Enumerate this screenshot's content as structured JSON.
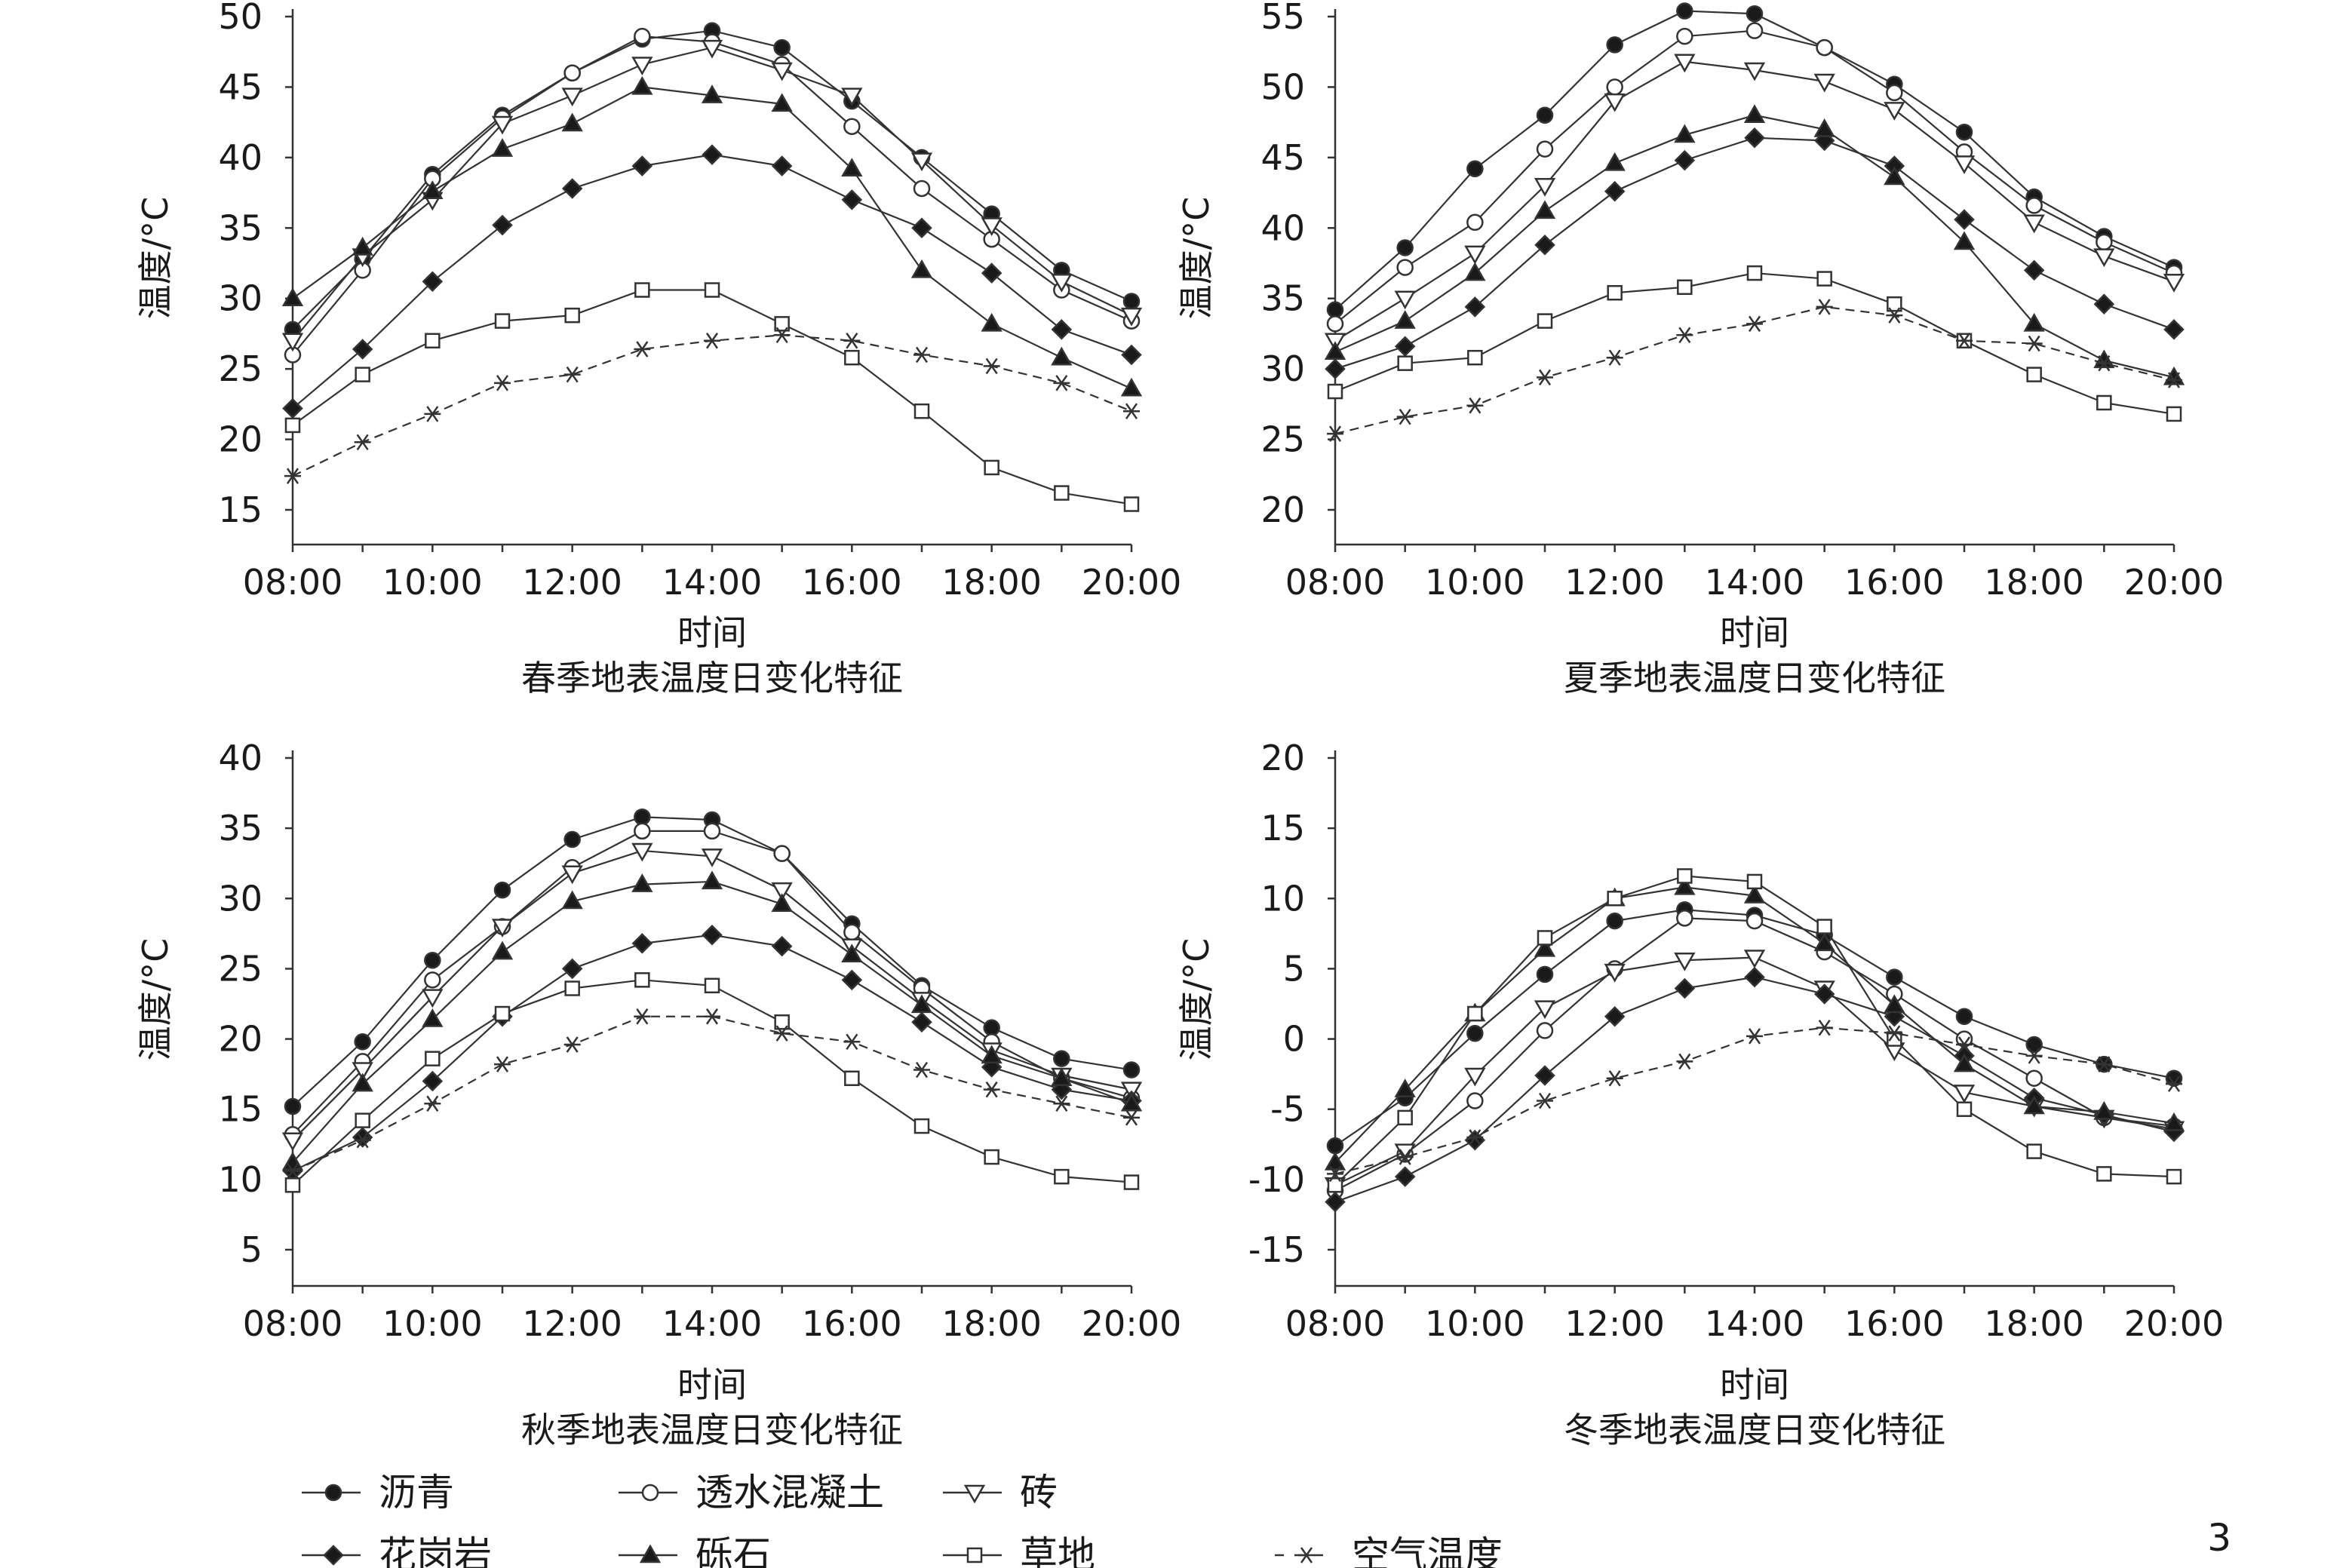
{
  "page_number": "3",
  "legend": [
    {
      "name": "沥青",
      "marker": "circle-filled",
      "dashed": false
    },
    {
      "name": "透水混凝土",
      "marker": "circle-open",
      "dashed": false
    },
    {
      "name": "砖",
      "marker": "triangle-down-open",
      "dashed": false
    },
    {
      "name": "花岗岩",
      "marker": "diamond-filled",
      "dashed": false
    },
    {
      "name": "砾石",
      "marker": "triangle-up-filled",
      "dashed": false
    },
    {
      "name": "草地",
      "marker": "square-open",
      "dashed": false
    },
    {
      "name": "空气温度",
      "marker": "asterisk",
      "dashed": true
    }
  ],
  "chart_data": [
    {
      "type": "line",
      "title": "春季地表温度日变化特征",
      "xlabel": "时间",
      "ylabel": "温度/°C",
      "categories": [
        "08:00",
        "09:00",
        "10:00",
        "11:00",
        "12:00",
        "13:00",
        "14:00",
        "15:00",
        "16:00",
        "17:00",
        "18:00",
        "19:00",
        "20:00"
      ],
      "xticks": [
        "08:00",
        "10:00",
        "12:00",
        "14:00",
        "16:00",
        "18:00",
        "20:00"
      ],
      "ylim": [
        12,
        50
      ],
      "yticks": [
        15,
        20,
        25,
        30,
        35,
        40,
        45,
        50
      ],
      "series": [
        {
          "name": "沥青",
          "values": [
            27.8,
            32.8,
            38.8,
            43.0,
            46.0,
            48.4,
            49.0,
            47.8,
            44.0,
            40.0,
            36.0,
            32.0,
            29.8
          ]
        },
        {
          "name": "透水混凝土",
          "values": [
            26.0,
            32.0,
            38.5,
            42.8,
            46.0,
            48.6,
            48.2,
            46.6,
            42.2,
            37.8,
            34.2,
            30.6,
            28.4
          ]
        },
        {
          "name": "砖",
          "values": [
            27.0,
            33.0,
            37.0,
            42.4,
            44.4,
            46.6,
            47.8,
            46.2,
            44.4,
            39.8,
            35.2,
            31.2,
            28.8
          ]
        },
        {
          "name": "花岗岩",
          "values": [
            22.2,
            26.4,
            31.2,
            35.2,
            37.8,
            39.4,
            40.2,
            39.4,
            37.0,
            35.0,
            31.8,
            27.8,
            26.0
          ]
        },
        {
          "name": "砾石",
          "values": [
            30.0,
            33.6,
            37.6,
            40.6,
            42.4,
            45.0,
            44.4,
            43.8,
            39.2,
            32.0,
            28.2,
            25.8,
            23.6
          ]
        },
        {
          "name": "草地",
          "values": [
            21.0,
            24.6,
            27.0,
            28.4,
            28.8,
            30.6,
            30.6,
            28.2,
            25.8,
            22.0,
            18.0,
            16.2,
            15.4
          ]
        },
        {
          "name": "空气温度",
          "values": [
            17.4,
            19.8,
            21.8,
            24.0,
            24.6,
            26.4,
            27.0,
            27.4,
            27.0,
            26.0,
            25.2,
            24.0,
            22.0
          ]
        }
      ]
    },
    {
      "type": "line",
      "title": "夏季地表温度日变化特征",
      "xlabel": "时间",
      "ylabel": "温度/°C",
      "categories": [
        "08:00",
        "09:00",
        "10:00",
        "11:00",
        "12:00",
        "13:00",
        "14:00",
        "15:00",
        "16:00",
        "17:00",
        "18:00",
        "19:00",
        "20:00"
      ],
      "xticks": [
        "08:00",
        "10:00",
        "12:00",
        "14:00",
        "16:00",
        "18:00",
        "20:00"
      ],
      "ylim": [
        17,
        55
      ],
      "yticks": [
        20,
        25,
        30,
        35,
        40,
        45,
        50,
        55
      ],
      "series": [
        {
          "name": "沥青",
          "values": [
            34.2,
            38.6,
            44.2,
            48.0,
            53.0,
            55.4,
            55.2,
            52.8,
            50.2,
            46.8,
            42.2,
            39.4,
            37.2
          ]
        },
        {
          "name": "透水混凝土",
          "values": [
            33.2,
            37.2,
            40.4,
            45.6,
            50.0,
            53.6,
            54.0,
            52.8,
            49.6,
            45.4,
            41.6,
            39.0,
            36.8
          ]
        },
        {
          "name": "砖",
          "values": [
            32.0,
            35.0,
            38.2,
            43.0,
            49.0,
            51.8,
            51.2,
            50.4,
            48.4,
            44.6,
            40.4,
            38.0,
            36.2
          ]
        },
        {
          "name": "花岗岩",
          "values": [
            30.0,
            31.6,
            34.4,
            38.8,
            42.6,
            44.8,
            46.4,
            46.2,
            44.4,
            40.6,
            37.0,
            34.6,
            32.8
          ]
        },
        {
          "name": "砾石",
          "values": [
            31.2,
            33.4,
            36.8,
            41.2,
            44.6,
            46.6,
            48.0,
            47.0,
            43.6,
            39.0,
            33.2,
            30.6,
            29.4
          ]
        },
        {
          "name": "草地",
          "values": [
            28.4,
            30.4,
            30.8,
            33.4,
            35.4,
            35.8,
            36.8,
            36.4,
            34.6,
            32.0,
            29.6,
            27.6,
            26.8
          ]
        },
        {
          "name": "空气温度",
          "values": [
            25.4,
            26.6,
            27.4,
            29.4,
            30.8,
            32.4,
            33.2,
            34.4,
            33.8,
            32.0,
            31.8,
            30.4,
            29.2
          ]
        }
      ]
    },
    {
      "type": "line",
      "title": "秋季地表温度日变化特征",
      "xlabel": "时间",
      "ylabel": "温度/°C",
      "categories": [
        "08:00",
        "09:00",
        "10:00",
        "11:00",
        "12:00",
        "13:00",
        "14:00",
        "15:00",
        "16:00",
        "17:00",
        "18:00",
        "19:00",
        "20:00"
      ],
      "xticks": [
        "08:00",
        "10:00",
        "12:00",
        "14:00",
        "16:00",
        "18:00",
        "20:00"
      ],
      "ylim": [
        2,
        40
      ],
      "yticks": [
        5,
        10,
        15,
        20,
        25,
        30,
        35,
        40
      ],
      "series": [
        {
          "name": "沥青",
          "values": [
            15.2,
            19.8,
            25.6,
            30.6,
            34.2,
            35.8,
            35.6,
            33.2,
            28.2,
            23.8,
            20.8,
            18.6,
            17.8
          ]
        },
        {
          "name": "透水混凝土",
          "values": [
            13.2,
            18.4,
            24.2,
            28.0,
            32.2,
            34.8,
            34.8,
            33.2,
            27.6,
            23.6,
            19.8,
            17.2,
            15.8
          ]
        },
        {
          "name": "砖",
          "values": [
            12.8,
            17.8,
            23.0,
            28.0,
            31.8,
            33.4,
            33.0,
            30.6,
            26.6,
            22.8,
            19.2,
            17.4,
            16.4
          ]
        },
        {
          "name": "花岗岩",
          "values": [
            10.6,
            13.0,
            17.0,
            21.6,
            25.0,
            26.8,
            27.4,
            26.6,
            24.2,
            21.2,
            18.0,
            16.4,
            15.6
          ]
        },
        {
          "name": "砾石",
          "values": [
            11.2,
            16.8,
            21.4,
            26.2,
            29.8,
            31.0,
            31.2,
            29.6,
            26.0,
            22.4,
            18.8,
            17.2,
            15.4
          ]
        },
        {
          "name": "草地",
          "values": [
            9.6,
            14.2,
            18.6,
            21.8,
            23.6,
            24.2,
            23.8,
            21.2,
            17.2,
            13.8,
            11.6,
            10.2,
            9.8
          ]
        },
        {
          "name": "空气温度",
          "values": [
            10.6,
            12.8,
            15.4,
            18.2,
            19.6,
            21.6,
            21.6,
            20.4,
            19.8,
            17.8,
            16.4,
            15.4,
            14.4
          ]
        }
      ]
    },
    {
      "type": "line",
      "title": "冬季地表温度日变化特征",
      "xlabel": "时间",
      "ylabel": "温度/°C",
      "categories": [
        "08:00",
        "09:00",
        "10:00",
        "11:00",
        "12:00",
        "13:00",
        "14:00",
        "15:00",
        "16:00",
        "17:00",
        "18:00",
        "19:00",
        "20:00"
      ],
      "xticks": [
        "08:00",
        "10:00",
        "12:00",
        "14:00",
        "16:00",
        "18:00",
        "20:00"
      ],
      "ylim": [
        -18,
        20
      ],
      "yticks": [
        -15,
        -10,
        -5,
        0,
        5,
        10,
        15,
        20
      ],
      "series": [
        {
          "name": "沥青",
          "values": [
            -7.6,
            -4.2,
            0.4,
            4.6,
            8.4,
            9.2,
            8.8,
            7.4,
            4.4,
            1.6,
            -0.4,
            -1.8,
            -2.8
          ]
        },
        {
          "name": "透水混凝土",
          "values": [
            -10.8,
            -8.2,
            -4.4,
            0.6,
            5.0,
            8.6,
            8.4,
            6.2,
            3.2,
            0.0,
            -2.8,
            -5.6,
            -6.2
          ]
        },
        {
          "name": "砖",
          "values": [
            -10.4,
            -8.0,
            -2.6,
            2.2,
            4.8,
            5.6,
            5.8,
            3.6,
            -0.8,
            -3.8,
            -4.8,
            -5.6,
            -6.4
          ]
        },
        {
          "name": "花岗岩",
          "values": [
            -11.6,
            -9.8,
            -7.2,
            -2.6,
            1.6,
            3.6,
            4.4,
            3.2,
            1.6,
            -1.2,
            -4.2,
            -5.4,
            -6.6
          ]
        },
        {
          "name": "砾石",
          "values": [
            -8.8,
            -3.6,
            1.8,
            6.4,
            10.0,
            10.8,
            10.2,
            6.8,
            2.4,
            -1.8,
            -4.8,
            -5.2,
            -6.0
          ]
        },
        {
          "name": "草地",
          "values": [
            -10.4,
            -5.6,
            1.8,
            7.2,
            10.0,
            11.6,
            11.2,
            8.0,
            0.0,
            -5.0,
            -8.0,
            -9.6,
            -9.8
          ]
        },
        {
          "name": "空气温度",
          "values": [
            -9.6,
            -8.4,
            -7.0,
            -4.4,
            -2.8,
            -1.6,
            0.2,
            0.8,
            0.4,
            -0.4,
            -1.2,
            -1.8,
            -3.2
          ]
        }
      ]
    }
  ]
}
